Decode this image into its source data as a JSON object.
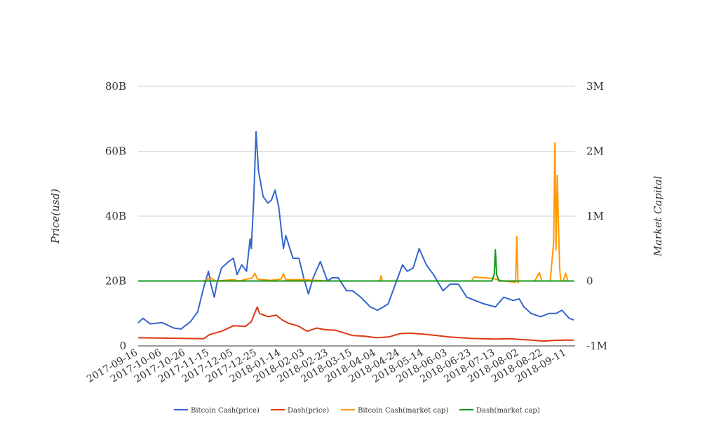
{
  "chart_data": {
    "type": "line",
    "title": "",
    "ylabel": "Price(usd)",
    "y2label": "Market Capital",
    "xlabel": "",
    "ylim": [
      0,
      80000000000
    ],
    "y2lim": [
      -1000000,
      3000000
    ],
    "yticks": [
      "0",
      "20B",
      "40B",
      "60B",
      "80B"
    ],
    "y2ticks": [
      "-1M",
      "0",
      "1M",
      "2M",
      "3M"
    ],
    "x_tick_labels": [
      "2017-09-16",
      "2017-10-06",
      "2017-10-26",
      "2017-11-15",
      "2017-12-05",
      "2017-12-25",
      "2018-01-14",
      "2018-02-03",
      "2018-02-23",
      "2018-03-15",
      "2018-04-04",
      "2018-04-24",
      "2018-05-14",
      "2018-06-03",
      "2018-06-23",
      "2018-07-13",
      "2018-08-02",
      "2018-08-22",
      "2018-09-11"
    ],
    "x_range": [
      "2017-09-16",
      "2018-09-18"
    ],
    "grid": true,
    "legend_position": "bottom",
    "series": [
      {
        "name": "Bitcoin Cash(price)",
        "axis": "left",
        "color": "#3366cc",
        "x": [
          "2017-09-16",
          "2017-09-20",
          "2017-09-26",
          "2017-10-06",
          "2017-10-16",
          "2017-10-22",
          "2017-10-30",
          "2017-11-05",
          "2017-11-10",
          "2017-11-14",
          "2017-11-16",
          "2017-11-19",
          "2017-11-21",
          "2017-11-25",
          "2017-12-01",
          "2017-12-05",
          "2017-12-08",
          "2017-12-12",
          "2017-12-16",
          "2017-12-19",
          "2017-12-20",
          "2017-12-22",
          "2017-12-24",
          "2017-12-26",
          "2017-12-30",
          "2018-01-03",
          "2018-01-06",
          "2018-01-09",
          "2018-01-12",
          "2018-01-16",
          "2018-01-18",
          "2018-01-24",
          "2018-01-29",
          "2018-02-02",
          "2018-02-06",
          "2018-02-10",
          "2018-02-16",
          "2018-02-22",
          "2018-02-26",
          "2018-03-03",
          "2018-03-10",
          "2018-03-15",
          "2018-03-22",
          "2018-03-30",
          "2018-04-05",
          "2018-04-10",
          "2018-04-14",
          "2018-04-20",
          "2018-04-26",
          "2018-04-30",
          "2018-05-05",
          "2018-05-10",
          "2018-05-16",
          "2018-05-22",
          "2018-05-30",
          "2018-06-05",
          "2018-06-12",
          "2018-06-19",
          "2018-06-26",
          "2018-07-03",
          "2018-07-13",
          "2018-07-20",
          "2018-07-28",
          "2018-08-02",
          "2018-08-06",
          "2018-08-12",
          "2018-08-20",
          "2018-08-27",
          "2018-09-02",
          "2018-09-07",
          "2018-09-13",
          "2018-09-17"
        ],
        "values": [
          7100000000.0,
          8500000000.0,
          6800000000.0,
          7200000000.0,
          5500000000.0,
          5200000000.0,
          7500000000.0,
          10500000000.0,
          18000000000.0,
          23000000000.0,
          19000000000.0,
          15000000000.0,
          19000000000.0,
          24000000000.0,
          26000000000.0,
          27000000000.0,
          22000000000.0,
          25000000000.0,
          23000000000.0,
          33000000000.0,
          30000000000.0,
          45000000000.0,
          66000000000.0,
          54000000000.0,
          46000000000.0,
          44000000000.0,
          45000000000.0,
          48000000000.0,
          43000000000.0,
          30000000000.0,
          34000000000.0,
          27000000000.0,
          27000000000.0,
          21000000000.0,
          16000000000.0,
          21000000000.0,
          26000000000.0,
          20000000000.0,
          21000000000.0,
          21000000000.0,
          17000000000.0,
          17000000000.0,
          15000000000.0,
          12000000000.0,
          11000000000.0,
          12000000000.0,
          13000000000.0,
          19000000000.0,
          25000000000.0,
          23000000000.0,
          24000000000.0,
          30000000000.0,
          25000000000.0,
          22000000000.0,
          17000000000.0,
          19000000000.0,
          19000000000.0,
          15000000000.0,
          14000000000.0,
          13000000000.0,
          12000000000.0,
          15000000000.0,
          14000000000.0,
          14500000000.0,
          12000000000.0,
          10000000000.0,
          9000000000.0,
          10000000000.0,
          10000000000.0,
          11000000000.0,
          8500000000.0,
          8000000000.0
        ]
      },
      {
        "name": "Dash(price)",
        "axis": "left",
        "color": "#dc3912",
        "x": [
          "2017-09-16",
          "2017-10-06",
          "2017-10-26",
          "2017-11-10",
          "2017-11-15",
          "2017-11-25",
          "2017-12-05",
          "2017-12-15",
          "2017-12-20",
          "2017-12-25",
          "2017-12-27",
          "2018-01-03",
          "2018-01-10",
          "2018-01-15",
          "2018-01-20",
          "2018-01-28",
          "2018-02-05",
          "2018-02-13",
          "2018-02-20",
          "2018-03-01",
          "2018-03-15",
          "2018-03-25",
          "2018-04-04",
          "2018-04-15",
          "2018-04-24",
          "2018-05-04",
          "2018-05-14",
          "2018-05-25",
          "2018-06-03",
          "2018-06-23",
          "2018-07-13",
          "2018-07-25",
          "2018-08-02",
          "2018-08-12",
          "2018-08-22",
          "2018-09-01",
          "2018-09-11",
          "2018-09-17"
        ],
        "values": [
          2500000000.0,
          2400000000.0,
          2300000000.0,
          2200000000.0,
          3500000000.0,
          4500000000.0,
          6200000000.0,
          6000000000.0,
          7500000000.0,
          12000000000.0,
          10000000000.0,
          9000000000.0,
          9500000000.0,
          8000000000.0,
          7000000000.0,
          6200000000.0,
          4500000000.0,
          5500000000.0,
          5000000000.0,
          4800000000.0,
          3200000000.0,
          3000000000.0,
          2500000000.0,
          2800000000.0,
          3800000000.0,
          3900000000.0,
          3600000000.0,
          3200000000.0,
          2800000000.0,
          2300000000.0,
          2100000000.0,
          2200000000.0,
          2000000000.0,
          1800000000.0,
          1500000000.0,
          1700000000.0,
          1800000000.0,
          1800000000.0
        ]
      },
      {
        "name": "Bitcoin Cash(market cap)",
        "axis": "right",
        "color": "#ff9900",
        "x": [
          "2017-09-16",
          "2017-11-10",
          "2017-11-16",
          "2017-11-20",
          "2017-12-05",
          "2017-12-10",
          "2017-12-21",
          "2017-12-23",
          "2017-12-25",
          "2018-01-05",
          "2018-01-14",
          "2018-01-16",
          "2018-01-18",
          "2018-02-01",
          "2018-02-23",
          "2018-03-01",
          "2018-04-07",
          "2018-04-08",
          "2018-04-09",
          "2018-06-23",
          "2018-06-25",
          "2018-07-10",
          "2018-07-20",
          "2018-07-30",
          "2018-07-31",
          "2018-08-01",
          "2018-08-02",
          "2018-08-15",
          "2018-08-19",
          "2018-08-21",
          "2018-08-28",
          "2018-08-31",
          "2018-09-01",
          "2018-09-02",
          "2018-09-03",
          "2018-09-04",
          "2018-09-05",
          "2018-09-06",
          "2018-09-08",
          "2018-09-10",
          "2018-09-12",
          "2018-09-17"
        ],
        "values": [
          0,
          0,
          50000,
          0,
          20000,
          0,
          50000,
          120000,
          30000,
          10000,
          30000,
          110000,
          20000,
          20000,
          0,
          0,
          0,
          80000,
          0,
          0,
          60000,
          40000,
          0,
          -20000,
          690000,
          -30000,
          0,
          0,
          130000,
          0,
          0,
          600000,
          2130000,
          480000,
          1630000,
          900000,
          200000,
          0,
          0,
          120000,
          0,
          0
        ]
      },
      {
        "name": "Dash(market cap)",
        "axis": "right",
        "color": "#109618",
        "x": [
          "2017-09-16",
          "2018-07-10",
          "2018-07-12",
          "2018-07-13",
          "2018-07-14",
          "2018-07-16",
          "2018-09-17"
        ],
        "values": [
          0,
          0,
          100000,
          480000,
          100000,
          0,
          0
        ]
      }
    ]
  }
}
